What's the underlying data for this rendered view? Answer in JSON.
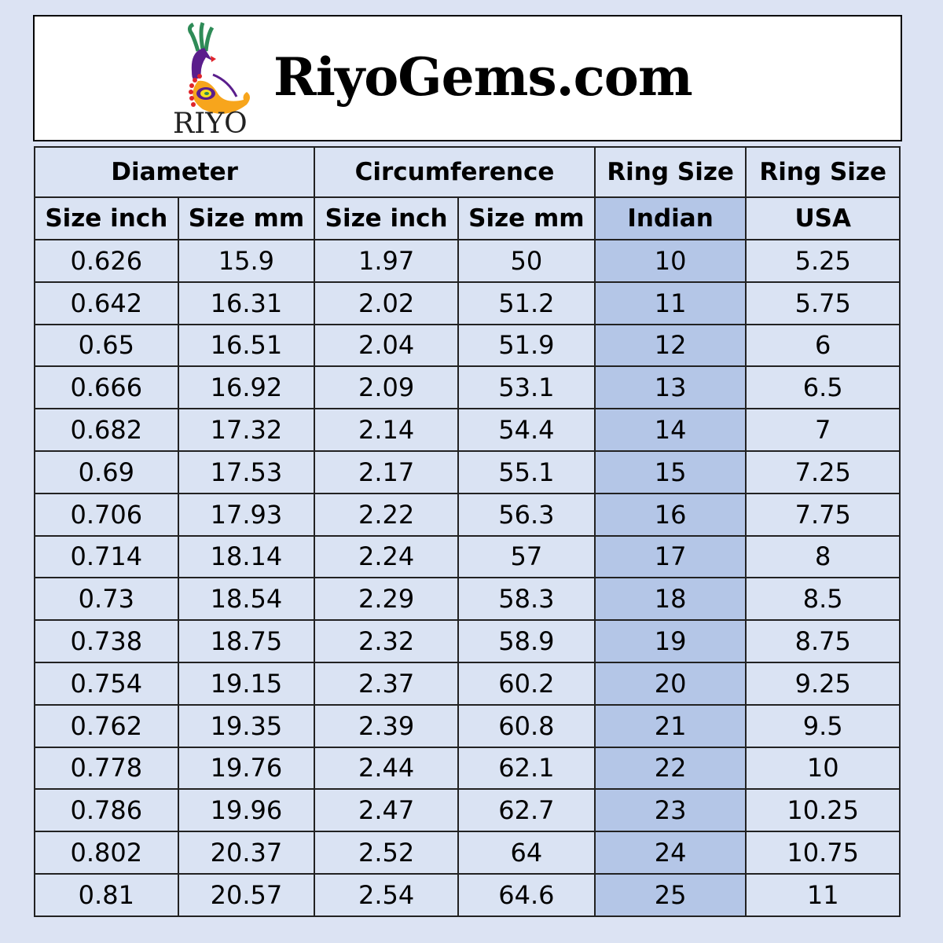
{
  "brand": {
    "name": "RiyoGems.com",
    "logo_text": "RIYO"
  },
  "colors": {
    "background": "#dce3f3",
    "cell": "#dae3f3",
    "indian_column": "#b4c6e7"
  },
  "table": {
    "group_headers": [
      "Diameter",
      "Circumference",
      "Ring Size",
      "Ring Size"
    ],
    "sub_headers": [
      "Size inch",
      "Size mm",
      "Size inch",
      "Size mm",
      "Indian",
      "USA"
    ],
    "rows": [
      [
        "0.626",
        "15.9",
        "1.97",
        "50",
        "10",
        "5.25"
      ],
      [
        "0.642",
        "16.31",
        "2.02",
        "51.2",
        "11",
        "5.75"
      ],
      [
        "0.65",
        "16.51",
        "2.04",
        "51.9",
        "12",
        "6"
      ],
      [
        "0.666",
        "16.92",
        "2.09",
        "53.1",
        "13",
        "6.5"
      ],
      [
        "0.682",
        "17.32",
        "2.14",
        "54.4",
        "14",
        "7"
      ],
      [
        "0.69",
        "17.53",
        "2.17",
        "55.1",
        "15",
        "7.25"
      ],
      [
        "0.706",
        "17.93",
        "2.22",
        "56.3",
        "16",
        "7.75"
      ],
      [
        "0.714",
        "18.14",
        "2.24",
        "57",
        "17",
        "8"
      ],
      [
        "0.73",
        "18.54",
        "2.29",
        "58.3",
        "18",
        "8.5"
      ],
      [
        "0.738",
        "18.75",
        "2.32",
        "58.9",
        "19",
        "8.75"
      ],
      [
        "0.754",
        "19.15",
        "2.37",
        "60.2",
        "20",
        "9.25"
      ],
      [
        "0.762",
        "19.35",
        "2.39",
        "60.8",
        "21",
        "9.5"
      ],
      [
        "0.778",
        "19.76",
        "2.44",
        "62.1",
        "22",
        "10"
      ],
      [
        "0.786",
        "19.96",
        "2.47",
        "62.7",
        "23",
        "10.25"
      ],
      [
        "0.802",
        "20.37",
        "2.52",
        "64",
        "24",
        "10.75"
      ],
      [
        "0.81",
        "20.57",
        "2.54",
        "64.6",
        "25",
        "11"
      ]
    ]
  }
}
